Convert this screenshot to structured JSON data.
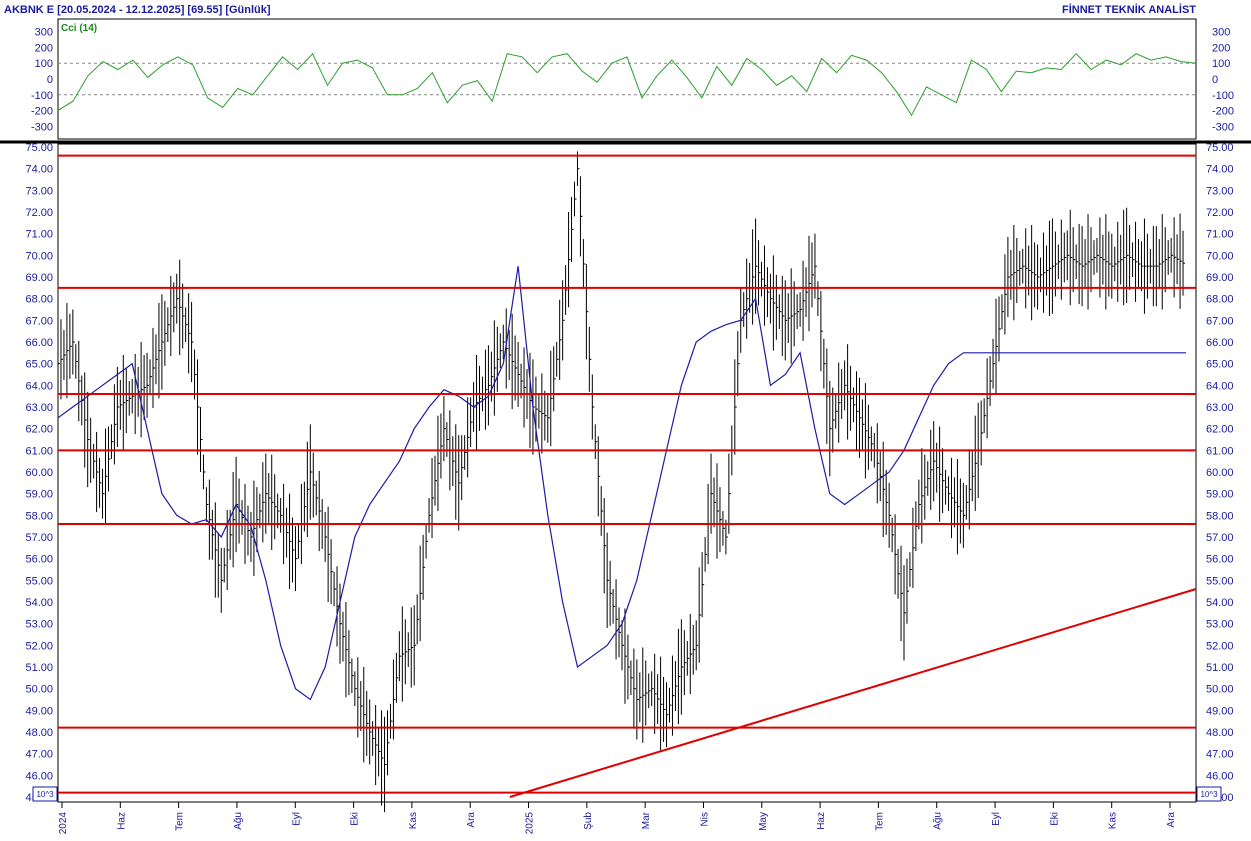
{
  "header": {
    "left_title": "AKBNK E  [20.05.2024 - 12.12.2025]  [69.55]  [Günlük]",
    "right_title": "FİNNET TEKNİK ANALİST"
  },
  "indicator": {
    "label": "Cci (14)",
    "color": "#2ca02c"
  },
  "scale_badge": "10^3",
  "chart_data": [
    {
      "type": "line",
      "panel": "indicator",
      "series": [
        {
          "name": "Cci (14)",
          "x": [
            0,
            5,
            10,
            15,
            20,
            25,
            30,
            35,
            40,
            45,
            50,
            55,
            60,
            65,
            70,
            75,
            80,
            85,
            90,
            95,
            100,
            105,
            110,
            115,
            120,
            125,
            130,
            135,
            140,
            145,
            150,
            155,
            160,
            165,
            170,
            175,
            180,
            185,
            190,
            195,
            200,
            205,
            210,
            215,
            220,
            225,
            230,
            235,
            240,
            245,
            250,
            255,
            260,
            265,
            270,
            275,
            280,
            285,
            290,
            295,
            300,
            305,
            310,
            315,
            320,
            325,
            330,
            335,
            340,
            345,
            350,
            355,
            360,
            365,
            370,
            375,
            380
          ],
          "y": [
            -200,
            -140,
            20,
            110,
            60,
            120,
            10,
            90,
            140,
            90,
            -120,
            -180,
            -60,
            -100,
            20,
            140,
            60,
            160,
            -40,
            100,
            120,
            70,
            -100,
            -100,
            -60,
            40,
            -150,
            -40,
            -10,
            -140,
            160,
            140,
            40,
            140,
            160,
            50,
            -20,
            100,
            140,
            -120,
            20,
            120,
            10,
            -120,
            80,
            -40,
            130,
            60,
            -40,
            20,
            -80,
            130,
            40,
            150,
            120,
            40,
            -80,
            -230,
            -50,
            -100,
            -150,
            120,
            60,
            -80,
            50,
            40,
            70,
            60,
            160,
            60,
            120,
            90,
            160,
            120,
            140,
            110,
            100
          ],
          "color": "#2ca02c"
        }
      ],
      "xlim": [
        0,
        380
      ],
      "ylim": [
        -380,
        380
      ],
      "y_ticks": [
        300,
        200,
        100,
        0,
        -100,
        -200,
        -300
      ],
      "reference_lines": [
        100,
        -100
      ],
      "grid": false
    },
    {
      "type": "candlestick",
      "panel": "price",
      "categories": [
        "2024",
        "Haz",
        "Tem",
        "Ağu",
        "Eyl",
        "Eki",
        "Kas",
        "Ara",
        "2025",
        "Şub",
        "Mar",
        "Nis",
        "May",
        "Haz",
        "Tem",
        "Ağu",
        "Eyl",
        "Eki",
        "Kas",
        "Ara"
      ],
      "y_ticks": [
        75,
        74,
        73,
        72,
        71,
        70,
        69,
        68,
        67,
        66,
        65,
        64,
        63,
        62,
        61,
        60,
        59,
        58,
        57,
        56,
        55,
        54,
        53,
        52,
        51,
        50,
        49,
        48,
        47,
        46,
        45
      ],
      "ylim": [
        45,
        75
      ],
      "series": [
        {
          "name": "close",
          "x": [
            0,
            5,
            10,
            15,
            20,
            25,
            30,
            35,
            40,
            45,
            50,
            55,
            60,
            65,
            70,
            75,
            80,
            85,
            90,
            95,
            100,
            105,
            110,
            115,
            120,
            125,
            130,
            135,
            140,
            145,
            150,
            155,
            160,
            165,
            170,
            175,
            180,
            185,
            190,
            195,
            200,
            205,
            210,
            215,
            220,
            225,
            230,
            235,
            240,
            245,
            250,
            255,
            260,
            265,
            270,
            275,
            280,
            285,
            290,
            295,
            300,
            305,
            310,
            315,
            320,
            325,
            330,
            335,
            340,
            345,
            350,
            355,
            360,
            365,
            370,
            375,
            380
          ],
          "y": [
            65.0,
            66.0,
            61.5,
            59.0,
            63.0,
            63.5,
            64.0,
            66.0,
            68.0,
            66.0,
            58.5,
            55.0,
            58.5,
            57.0,
            59.0,
            58.0,
            56.0,
            60.0,
            57.0,
            53.0,
            50.0,
            48.0,
            46.5,
            51.5,
            52.0,
            58.0,
            62.0,
            59.5,
            63.0,
            64.0,
            66.0,
            64.5,
            63.0,
            62.5,
            67.0,
            74.0,
            63.0,
            55.0,
            52.0,
            49.5,
            50.0,
            48.8,
            51.0,
            52.0,
            59.0,
            57.0,
            67.0,
            69.5,
            68.0,
            67.0,
            67.5,
            69.5,
            62.0,
            64.0,
            62.5,
            61.0,
            58.0,
            53.5,
            58.5,
            60.5,
            59.0,
            58.0,
            61.0,
            65.0,
            69.0,
            69.5,
            69.0,
            69.5,
            70.0,
            69.5,
            70.0,
            69.5,
            70.0,
            69.5,
            69.5,
            70.0,
            69.55
          ],
          "color": "#000000"
        },
        {
          "name": "moving average",
          "x": [
            0,
            5,
            10,
            15,
            20,
            25,
            30,
            35,
            40,
            45,
            50,
            55,
            60,
            65,
            70,
            75,
            80,
            85,
            90,
            95,
            100,
            105,
            110,
            115,
            120,
            125,
            130,
            135,
            140,
            145,
            150,
            155,
            160,
            165,
            170,
            175,
            180,
            185,
            190,
            195,
            200,
            205,
            210,
            215,
            220,
            225,
            230,
            235,
            240,
            245,
            250,
            255,
            260,
            265,
            270,
            275,
            280,
            285,
            290,
            295,
            300,
            305,
            310,
            315,
            320,
            325,
            330,
            335,
            340,
            345,
            350,
            355,
            360,
            365,
            370,
            375,
            380
          ],
          "y": [
            62.5,
            63.0,
            63.5,
            64.0,
            64.5,
            65.0,
            62.0,
            59.0,
            58.0,
            57.6,
            57.8,
            57.0,
            58.5,
            57.5,
            55.0,
            52.0,
            50.0,
            49.5,
            51.0,
            54.0,
            57.0,
            58.5,
            59.5,
            60.5,
            62.0,
            63.0,
            63.8,
            63.5,
            63.0,
            63.5,
            65.0,
            69.5,
            63.0,
            58.0,
            54.0,
            51.0,
            51.5,
            52.0,
            53.0,
            55.0,
            58.0,
            61.0,
            64.0,
            66.0,
            66.5,
            66.8,
            67.0,
            68.0,
            64.0,
            64.5,
            65.5,
            62.0,
            59.0,
            58.5,
            59.0,
            59.5,
            60.0,
            61.0,
            62.5,
            64.0,
            65.0,
            65.5,
            65.5,
            65.5,
            65.5,
            65.5,
            65.5,
            65.5,
            65.5,
            65.5,
            65.5,
            65.5,
            65.5,
            65.5,
            65.5,
            65.5,
            65.5
          ],
          "color": "#1c1ca8"
        }
      ],
      "horizontal_levels": [
        74.6,
        68.5,
        63.6,
        61.0,
        57.6,
        48.2,
        45.2
      ],
      "trend_line": {
        "from": [
          49,
          45.0
        ],
        "to": [
          168,
          54.6
        ]
      },
      "level_color": "#e00000"
    }
  ]
}
